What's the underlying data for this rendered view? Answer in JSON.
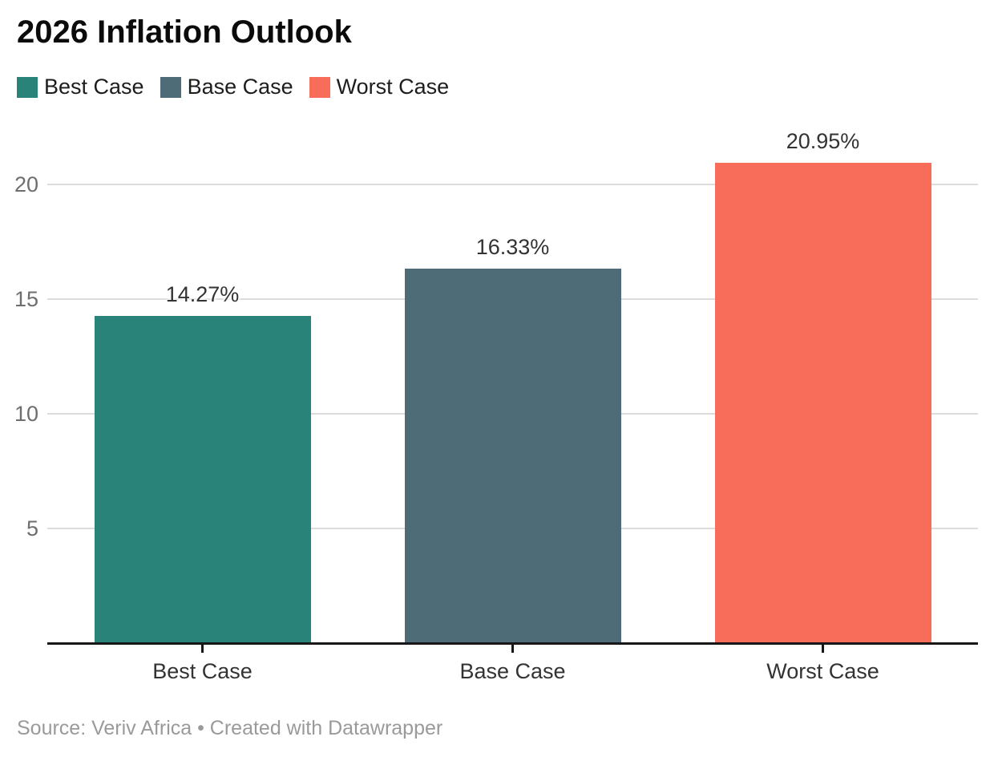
{
  "title": "2026 Inflation Outlook",
  "footer": {
    "text": "Source: Veriv Africa • Created with Datawrapper"
  },
  "colors": {
    "best_case": "#2a8379",
    "base_case": "#4e6c78",
    "worst_case": "#f76d5a",
    "gridline": "#dcdcdc",
    "axis_line": "#171717"
  },
  "chart_data": {
    "type": "bar",
    "title": "2026 Inflation Outlook",
    "categories": [
      "Best Case",
      "Base Case",
      "Worst Case"
    ],
    "values": [
      14.27,
      16.33,
      20.95
    ],
    "data_labels": [
      "14.27%",
      "16.33%",
      "20.95%"
    ],
    "series_colors": [
      "#2a8379",
      "#4e6c78",
      "#f76d5a"
    ],
    "legend": [
      {
        "label": "Best Case",
        "color": "#2a8379"
      },
      {
        "label": "Base Case",
        "color": "#4e6c78"
      },
      {
        "label": "Worst Case",
        "color": "#f76d5a"
      }
    ],
    "legend_position": "top",
    "xlabel": "",
    "ylabel": "",
    "yticks": [
      5,
      10,
      15,
      20
    ],
    "ylim": [
      0,
      22.4
    ],
    "grid": true,
    "unit": "%",
    "source": "Veriv Africa",
    "credit": "Created with Datawrapper"
  }
}
